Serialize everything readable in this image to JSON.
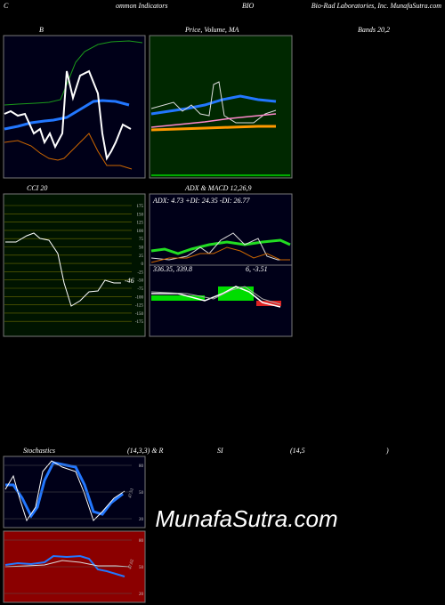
{
  "header": {
    "left": "C",
    "left2": "ommon  Indicators",
    "symbol": "BIO",
    "right": "Bio-Rad Laboratories, Inc. MunafaSutra.com"
  },
  "panels": {
    "bollinger": {
      "title": "B",
      "title_right": "Bands 20,2"
    },
    "price": {
      "title": "Price,  Volume,  MA"
    },
    "cci": {
      "title": "CCI 20",
      "ticks": [
        175,
        150,
        125,
        100,
        75,
        50,
        25,
        0,
        -25,
        -50,
        -75,
        -100,
        -125,
        -150,
        -175
      ],
      "value_label": "-46"
    },
    "adx": {
      "title": "ADX  & MACD 12,26,9",
      "readout": "ADX: 4.73  +DI: 24.35 -DI: 26.77"
    },
    "macd": {
      "readout_left": "336.35,  339.8",
      "readout_right": "6,  -3.51"
    },
    "stochastics": {
      "title": "Stochastics",
      "params": "(14,3,3) & R",
      "ticks": [
        80,
        50,
        20
      ],
      "value_label": "47.51"
    },
    "rsi": {
      "title": "SI",
      "params": "(14,5",
      "close": ")",
      "ticks": [
        80,
        50,
        20
      ],
      "value_label": "47.62"
    }
  },
  "watermark": "MunafaSutra.com"
}
